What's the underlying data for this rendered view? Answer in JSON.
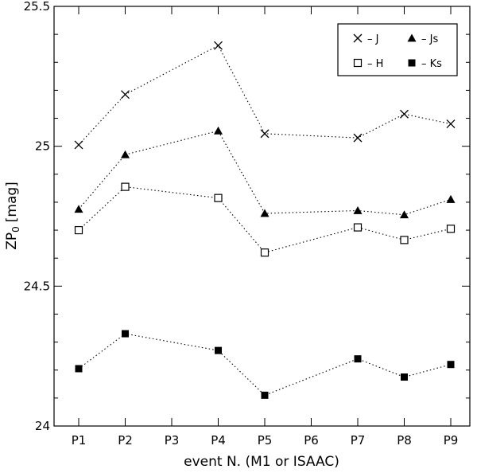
{
  "chart_data": {
    "type": "line",
    "title": "",
    "xlabel": "event N. (M1 or ISAAC)",
    "ylabel": "ZP",
    "ylabel_subscript": "0",
    "ylabel_unit": "[mag]",
    "categories": [
      "P1",
      "P2",
      "P3",
      "P4",
      "P5",
      "P6",
      "P7",
      "P8",
      "P9"
    ],
    "ylim": [
      24,
      25.5
    ],
    "yticks": [
      24,
      24.5,
      25,
      25.5
    ],
    "ytick_labels": [
      "24",
      "24.5",
      "25",
      "25.5"
    ],
    "legend_position": "top-right",
    "line_style": "dotted",
    "series": [
      {
        "name": "J",
        "marker": "cross",
        "x": [
          "P1",
          "P2",
          "P4",
          "P5",
          "P7",
          "P8",
          "P9"
        ],
        "values": [
          25.005,
          25.185,
          25.36,
          25.045,
          25.03,
          25.115,
          25.08
        ]
      },
      {
        "name": "Js",
        "marker": "triangle-filled",
        "x": [
          "P1",
          "P2",
          "P4",
          "P5",
          "P7",
          "P8",
          "P9"
        ],
        "values": [
          24.775,
          24.97,
          25.055,
          24.76,
          24.77,
          24.755,
          24.81
        ]
      },
      {
        "name": "H",
        "marker": "square-open",
        "x": [
          "P1",
          "P2",
          "P4",
          "P5",
          "P7",
          "P8",
          "P9"
        ],
        "values": [
          24.7,
          24.855,
          24.815,
          24.62,
          24.71,
          24.665,
          24.705
        ]
      },
      {
        "name": "Ks",
        "marker": "square-filled",
        "x": [
          "P1",
          "P2",
          "P4",
          "P5",
          "P7",
          "P8",
          "P9"
        ],
        "values": [
          24.205,
          24.33,
          24.27,
          24.11,
          24.24,
          24.175,
          24.22
        ]
      }
    ],
    "legend": {
      "dash": "–",
      "order": [
        "J",
        "Js",
        "H",
        "Ks"
      ]
    }
  }
}
